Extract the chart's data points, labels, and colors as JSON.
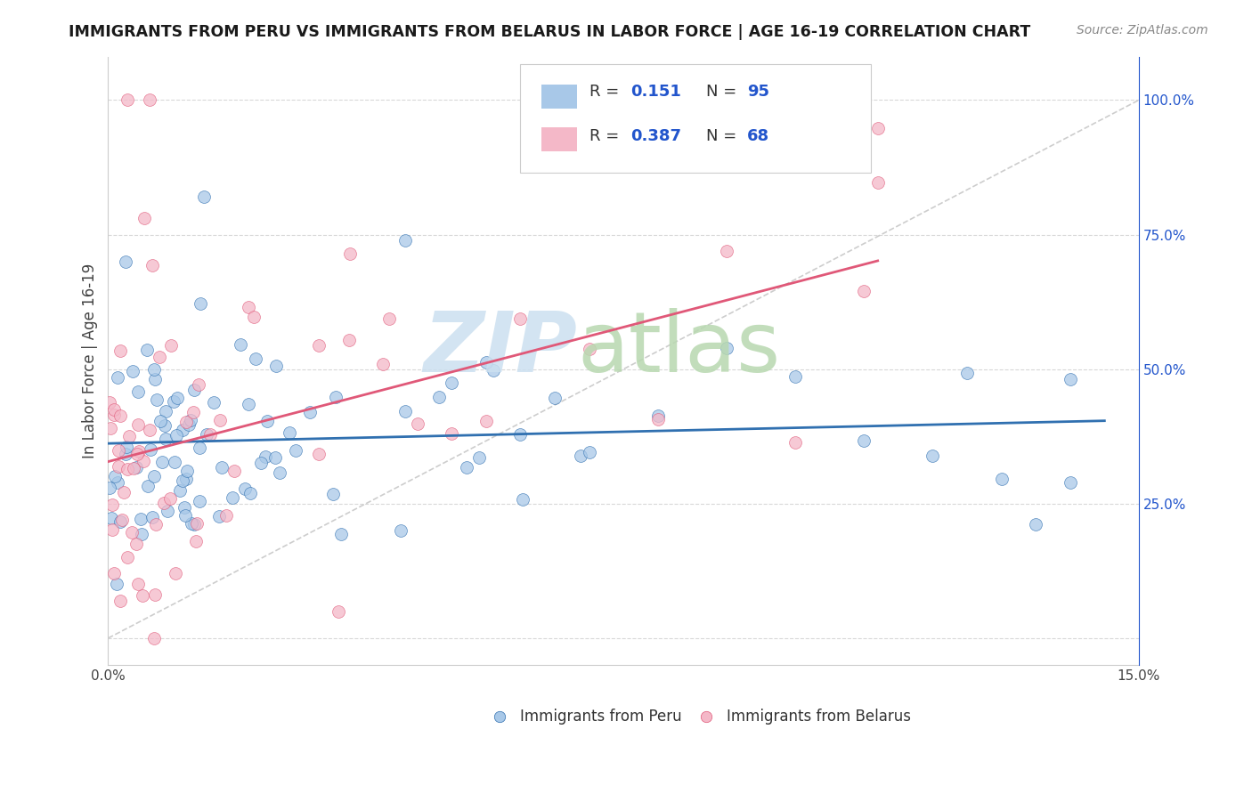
{
  "title": "IMMIGRANTS FROM PERU VS IMMIGRANTS FROM BELARUS IN LABOR FORCE | AGE 16-19 CORRELATION CHART",
  "source": "Source: ZipAtlas.com",
  "ylabel": "In Labor Force | Age 16-19",
  "xlim": [
    0.0,
    0.15
  ],
  "ylim": [
    -0.05,
    1.08
  ],
  "peru_R": "0.151",
  "peru_N": "95",
  "belarus_R": "0.387",
  "belarus_N": "68",
  "blue_color": "#a8c8e8",
  "pink_color": "#f4b8c8",
  "blue_line_color": "#3070b0",
  "pink_line_color": "#e05878",
  "diagonal_line_color": "#c8c8c8",
  "legend_color": "#2255cc",
  "grid_color": "#d8d8d8",
  "watermark_zip_color": "#cce0f0",
  "watermark_atlas_color": "#b8d8b0"
}
